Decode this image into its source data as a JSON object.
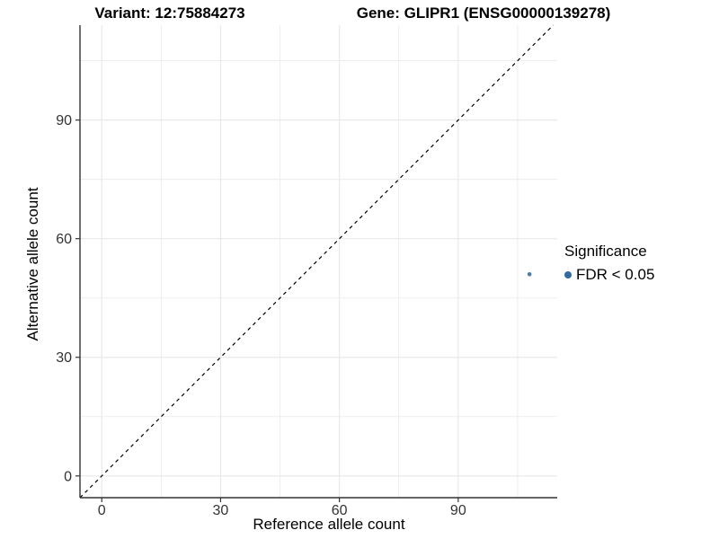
{
  "titles": {
    "variant": "Variant: 12:75884273",
    "gene": "Gene: GLIPR1 (ENSG00000139278)"
  },
  "axes": {
    "x": {
      "label": "Reference allele count"
    },
    "y": {
      "label": "Alternative allele count"
    }
  },
  "legend": {
    "title": "Significance",
    "items": [
      {
        "label": "FDR < 0.05",
        "color": "#34699e"
      }
    ]
  },
  "colors": {
    "point_blue": "#4c7aab",
    "legend_blue": "#34699e",
    "grid_line": "#e9e9e9",
    "axis_line": "#333333",
    "tick_text": "#333333",
    "identity_line": "#000000",
    "background": "#ffffff"
  },
  "chart_data": {
    "type": "scatter",
    "title": "Variant: 12:75884273 | Gene: GLIPR1 (ENSG00000139278)",
    "xlabel": "Reference allele count",
    "ylabel": "Alternative allele count",
    "xlim": [
      -5.5,
      115
    ],
    "ylim": [
      -5.5,
      114
    ],
    "x_major_ticks": [
      0,
      30,
      60,
      90
    ],
    "y_major_ticks": [
      0,
      30,
      60,
      90
    ],
    "x_minor_ticks": [
      15,
      45,
      75,
      105
    ],
    "y_minor_ticks": [
      15,
      45,
      75,
      105
    ],
    "grid": true,
    "legend_position": "right",
    "identity_line": {
      "style": "dashed",
      "x1": -5.5,
      "y1": -5.5,
      "x2": 114,
      "y2": 114
    },
    "series": [
      {
        "name": "FDR < 0.05",
        "points": [
          {
            "x": 108,
            "y": 51
          }
        ],
        "color": "#4c7aab",
        "point_radius": 2.3
      }
    ]
  }
}
